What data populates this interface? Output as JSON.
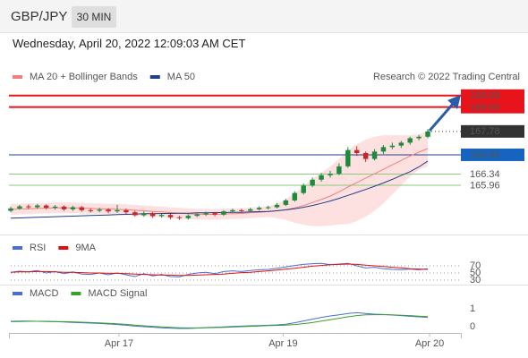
{
  "header": {
    "symbol": "GBP/JPY",
    "interval": "30 MIN",
    "timestamp": "Wednesday, April 20, 2022 12:09:03 AM CET"
  },
  "chart_data": [
    {
      "type": "candlestick",
      "annotation": "Research © 2022 Trading Central",
      "categories": [
        null,
        null,
        null,
        null,
        null,
        null,
        null,
        null,
        null,
        null,
        null,
        null,
        null,
        null,
        null,
        null,
        null,
        null,
        null,
        null,
        null,
        null,
        null,
        null,
        null,
        null,
        null,
        null,
        null,
        null,
        null,
        null,
        null,
        null,
        null,
        null,
        null,
        null,
        null,
        null,
        null,
        null,
        null,
        null,
        null,
        null,
        null,
        null
      ],
      "xlim": [
        0,
        47.5
      ],
      "ylim": [
        164.3,
        169.95
      ],
      "up_color": "#1e8a3e",
      "down_color": "#c62828",
      "open": [
        165.1,
        165.18,
        165.25,
        165.22,
        165.28,
        165.2,
        165.24,
        165.15,
        165.22,
        165.12,
        165.1,
        165.14,
        165.08,
        165.12,
        165.05,
        164.95,
        165.02,
        164.92,
        164.96,
        164.88,
        164.85,
        164.93,
        164.98,
        165.02,
        164.97,
        165.08,
        165.12,
        165.1,
        165.15,
        165.2,
        165.22,
        165.3,
        165.45,
        165.7,
        165.95,
        166.15,
        166.3,
        166.35,
        166.6,
        167.15,
        167.05,
        166.85,
        167.1,
        167.25,
        167.3,
        167.4,
        167.55,
        167.6
      ],
      "high": [
        165.24,
        165.3,
        165.31,
        165.33,
        165.32,
        165.29,
        165.28,
        165.27,
        165.26,
        165.18,
        165.2,
        165.19,
        165.3,
        165.17,
        165.1,
        165.08,
        165.06,
        165.01,
        165.0,
        164.93,
        164.98,
        165.03,
        165.07,
        165.06,
        165.12,
        165.17,
        165.16,
        165.2,
        165.25,
        165.27,
        165.36,
        165.5,
        165.76,
        166.02,
        166.22,
        166.38,
        166.45,
        166.7,
        167.25,
        167.28,
        167.1,
        167.18,
        167.32,
        167.4,
        167.46,
        167.6,
        167.66,
        167.86
      ],
      "low": [
        165.05,
        165.14,
        165.16,
        165.17,
        165.15,
        165.14,
        165.1,
        165.1,
        165.07,
        165.04,
        165.05,
        165.02,
        165.03,
        164.98,
        164.9,
        164.9,
        164.86,
        164.87,
        164.82,
        164.79,
        164.8,
        164.89,
        164.93,
        164.92,
        164.93,
        165.03,
        165.05,
        165.06,
        165.11,
        165.15,
        165.18,
        165.26,
        165.41,
        165.65,
        165.9,
        166.08,
        166.22,
        166.3,
        166.55,
        166.95,
        166.75,
        166.8,
        167.02,
        167.18,
        167.22,
        167.33,
        167.48,
        167.55
      ],
      "close": [
        165.18,
        165.25,
        165.22,
        165.28,
        165.2,
        165.24,
        165.15,
        165.22,
        165.12,
        165.1,
        165.14,
        165.08,
        165.12,
        165.05,
        164.95,
        165.02,
        164.92,
        164.96,
        164.88,
        164.85,
        164.93,
        164.98,
        165.02,
        164.97,
        165.08,
        165.12,
        165.1,
        165.15,
        165.2,
        165.22,
        165.3,
        165.45,
        165.7,
        165.95,
        166.15,
        166.3,
        166.35,
        166.6,
        167.15,
        167.05,
        166.85,
        167.1,
        167.25,
        167.3,
        167.4,
        167.55,
        167.6,
        167.78
      ],
      "series": [
        {
          "name": "MA 20 + Bollinger Bands",
          "color": "#f08080",
          "band_color": "#fde0e0",
          "values": [
            165.15,
            165.16,
            165.17,
            165.18,
            165.19,
            165.2,
            165.2,
            165.2,
            165.19,
            165.18,
            165.17,
            165.16,
            165.15,
            165.14,
            165.12,
            165.1,
            165.08,
            165.06,
            165.04,
            165.02,
            165.0,
            164.99,
            164.98,
            164.98,
            164.99,
            165.0,
            165.01,
            165.03,
            165.05,
            165.07,
            165.1,
            165.14,
            165.2,
            165.28,
            165.38,
            165.48,
            165.6,
            165.74,
            165.9,
            166.05,
            166.2,
            166.35,
            166.5,
            166.65,
            166.8,
            166.95,
            167.08,
            167.2
          ],
          "upper": [
            165.33,
            165.34,
            165.35,
            165.36,
            165.37,
            165.38,
            165.38,
            165.38,
            165.37,
            165.36,
            165.35,
            165.34,
            165.33,
            165.32,
            165.3,
            165.28,
            165.26,
            165.24,
            165.22,
            165.2,
            165.18,
            165.17,
            165.16,
            165.16,
            165.17,
            165.18,
            165.19,
            165.21,
            165.23,
            165.25,
            165.35,
            165.49,
            165.7,
            165.93,
            166.18,
            166.38,
            166.6,
            166.84,
            167.15,
            167.35,
            167.5,
            167.6,
            167.65,
            167.65,
            167.65,
            167.65,
            167.68,
            167.8
          ],
          "lower": [
            164.97,
            164.98,
            164.99,
            165.0,
            165.01,
            165.02,
            165.02,
            165.02,
            165.01,
            165.0,
            164.99,
            164.98,
            164.97,
            164.96,
            164.94,
            164.92,
            164.9,
            164.88,
            164.86,
            164.84,
            164.82,
            164.81,
            164.8,
            164.8,
            164.81,
            164.82,
            164.83,
            164.85,
            164.87,
            164.89,
            164.85,
            164.79,
            164.7,
            164.63,
            164.58,
            164.58,
            164.6,
            164.64,
            164.65,
            164.75,
            164.9,
            165.1,
            165.35,
            165.65,
            165.95,
            166.25,
            166.48,
            166.6
          ]
        },
        {
          "name": "MA 50",
          "color": "#1f3f8a",
          "values": [
            164.85,
            164.86,
            164.87,
            164.88,
            164.89,
            164.9,
            164.91,
            164.92,
            164.93,
            164.94,
            164.95,
            164.96,
            164.97,
            164.98,
            164.99,
            165.0,
            165.0,
            165.01,
            165.01,
            165.02,
            165.02,
            165.03,
            165.03,
            165.04,
            165.04,
            165.05,
            165.05,
            165.06,
            165.07,
            165.08,
            165.1,
            165.13,
            165.17,
            165.22,
            165.28,
            165.35,
            165.43,
            165.52,
            165.62,
            165.72,
            165.82,
            165.93,
            166.04,
            166.16,
            166.29,
            166.42,
            166.58,
            166.78
          ]
        }
      ],
      "levels": [
        {
          "value": 168.99,
          "color": "#e8141b",
          "style": "solid",
          "tag": "box"
        },
        {
          "value": 168.6,
          "label": "168.60",
          "color": "#e8141b",
          "style": "solid",
          "tag": "box"
        },
        {
          "value": 167.78,
          "color": "#333333",
          "style": "dotted",
          "tag": "box"
        },
        {
          "value": 166.99,
          "color": "#1f3f8a",
          "tag_color": "#1565c0",
          "style": "solid",
          "tag": "box"
        },
        {
          "value": 166.34,
          "color": "#8cc97a",
          "text_color": "#2e7d32",
          "style": "solid",
          "tag": "text"
        },
        {
          "value": 165.96,
          "color": "#8cc97a",
          "text_color": "#2e7d32",
          "style": "solid",
          "tag": "text"
        }
      ]
    },
    {
      "type": "line",
      "ylim": [
        17.5,
        95
      ],
      "yticks": [
        70,
        50,
        30
      ],
      "series": [
        {
          "name": "RSI",
          "color": "#4a6fd4",
          "values": [
            52,
            55,
            53,
            57,
            50,
            54,
            48,
            53,
            47,
            46,
            50,
            45,
            50,
            45,
            40,
            48,
            42,
            46,
            40,
            39,
            46,
            50,
            52,
            48,
            54,
            56,
            54,
            57,
            59,
            60,
            63,
            67,
            71,
            74,
            76,
            77,
            73,
            75,
            77,
            70,
            64,
            66,
            62,
            60,
            59,
            61,
            59,
            62
          ]
        },
        {
          "name": "9MA",
          "color": "#e01010",
          "values": [
            52,
            53,
            53,
            54,
            54,
            53,
            52,
            52,
            51,
            50,
            50,
            49,
            49,
            48,
            47,
            46,
            45,
            44,
            44,
            43,
            43,
            44,
            45,
            46,
            47,
            49,
            51,
            52,
            54,
            56,
            58,
            61,
            63,
            66,
            69,
            71,
            73,
            74,
            75,
            74,
            72,
            70,
            68,
            66,
            64,
            62,
            61,
            60
          ]
        }
      ]
    },
    {
      "type": "line",
      "ylim": [
        -0.35,
        1.35
      ],
      "yticks": [
        1,
        0
      ],
      "xticks": [
        {
          "value": 12.2,
          "label": "Apr 17"
        },
        {
          "value": 30.7,
          "label": "Apr 19"
        },
        {
          "value": 47.2,
          "label": "Apr 20"
        }
      ],
      "series": [
        {
          "name": "MACD",
          "color": "#4a6fd4",
          "values": [
            0.3,
            0.31,
            0.31,
            0.3,
            0.29,
            0.28,
            0.26,
            0.24,
            0.22,
            0.2,
            0.18,
            0.15,
            0.12,
            0.08,
            0.03,
            0.0,
            -0.03,
            -0.06,
            -0.08,
            -0.1,
            -0.1,
            -0.08,
            -0.05,
            -0.03,
            -0.01,
            0.01,
            0.03,
            0.05,
            0.06,
            0.08,
            0.1,
            0.14,
            0.22,
            0.32,
            0.42,
            0.52,
            0.6,
            0.66,
            0.74,
            0.78,
            0.74,
            0.7,
            0.68,
            0.65,
            0.62,
            0.58,
            0.55,
            0.52
          ]
        },
        {
          "name": "MACD Signal",
          "color": "#3aa02a",
          "values": [
            0.28,
            0.29,
            0.3,
            0.3,
            0.3,
            0.29,
            0.28,
            0.27,
            0.25,
            0.23,
            0.21,
            0.19,
            0.16,
            0.13,
            0.09,
            0.05,
            0.02,
            -0.01,
            -0.04,
            -0.06,
            -0.07,
            -0.07,
            -0.06,
            -0.05,
            -0.04,
            -0.02,
            0.0,
            0.02,
            0.04,
            0.06,
            0.07,
            0.09,
            0.12,
            0.17,
            0.23,
            0.31,
            0.39,
            0.47,
            0.55,
            0.62,
            0.66,
            0.67,
            0.67,
            0.66,
            0.64,
            0.62,
            0.59,
            0.56
          ]
        }
      ]
    }
  ]
}
